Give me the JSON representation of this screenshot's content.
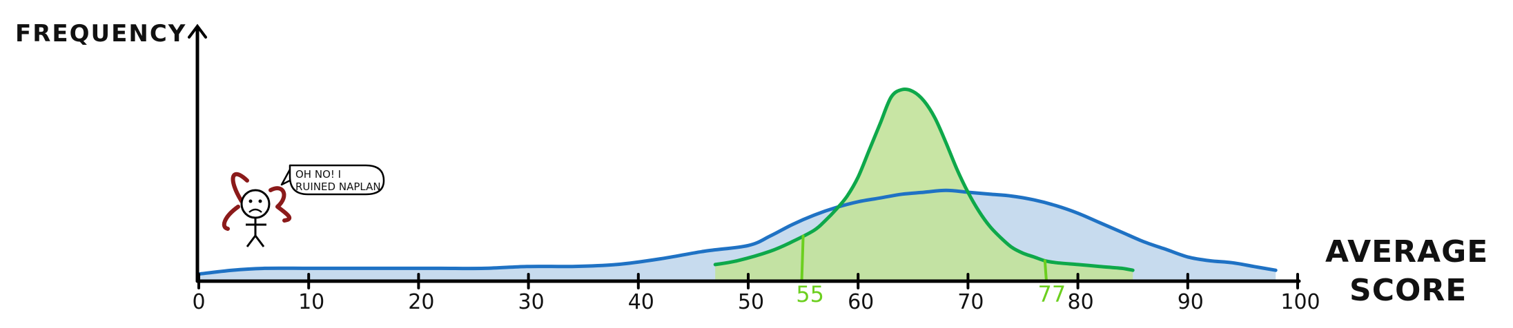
{
  "chart_data": {
    "type": "area",
    "title": "",
    "xlabel_lines": [
      "AVERAGE",
      "SCORE"
    ],
    "ylabel": "FREQUENCY",
    "xlim": [
      0,
      100
    ],
    "ylim": [
      0,
      10
    ],
    "x_ticks": [
      0,
      10,
      20,
      30,
      40,
      50,
      60,
      70,
      80,
      90,
      100
    ],
    "grid": false,
    "series": [
      {
        "color": "#1f72c4",
        "fill": "#c7dbee",
        "x": [
          0,
          3,
          6,
          10,
          14,
          18,
          22,
          26,
          30,
          34,
          38,
          42,
          46,
          50,
          52,
          54,
          56,
          58,
          60,
          62,
          64,
          66,
          68,
          70,
          72,
          74,
          76,
          78,
          80,
          82,
          84,
          86,
          88,
          90,
          92,
          94,
          96,
          98
        ],
        "y": [
          0.3,
          0.5,
          0.6,
          0.6,
          0.6,
          0.6,
          0.6,
          0.6,
          0.7,
          0.7,
          0.8,
          1.1,
          1.5,
          1.8,
          2.3,
          2.9,
          3.4,
          3.8,
          4.1,
          4.3,
          4.5,
          4.6,
          4.7,
          4.6,
          4.5,
          4.4,
          4.2,
          3.9,
          3.5,
          3.0,
          2.5,
          2.0,
          1.6,
          1.2,
          1.0,
          0.9,
          0.7,
          0.5
        ]
      },
      {
        "color": "#0ea84a",
        "fill": "#c2e29a",
        "x": [
          47,
          49,
          52,
          54,
          56,
          57,
          58,
          59,
          60,
          61,
          62,
          63,
          64,
          65,
          66,
          67,
          68,
          69,
          70,
          71,
          72,
          73,
          74,
          75,
          76,
          77,
          78,
          80,
          82,
          84,
          85
        ],
        "y": [
          0.8,
          1.0,
          1.5,
          2.0,
          2.6,
          3.1,
          3.7,
          4.4,
          5.4,
          6.8,
          8.2,
          9.6,
          10.0,
          9.9,
          9.4,
          8.5,
          7.2,
          5.8,
          4.6,
          3.6,
          2.8,
          2.2,
          1.7,
          1.4,
          1.2,
          1.0,
          0.9,
          0.8,
          0.7,
          0.6,
          0.5
        ]
      }
    ],
    "markers": [
      {
        "x": 55,
        "label": "55",
        "color": "#6ccf1f"
      },
      {
        "x": 77,
        "label": "77",
        "color": "#6ccf1f"
      }
    ],
    "annotation": {
      "speech_lines": [
        "OH NO! I",
        "RUINED NAPLAN"
      ]
    }
  }
}
